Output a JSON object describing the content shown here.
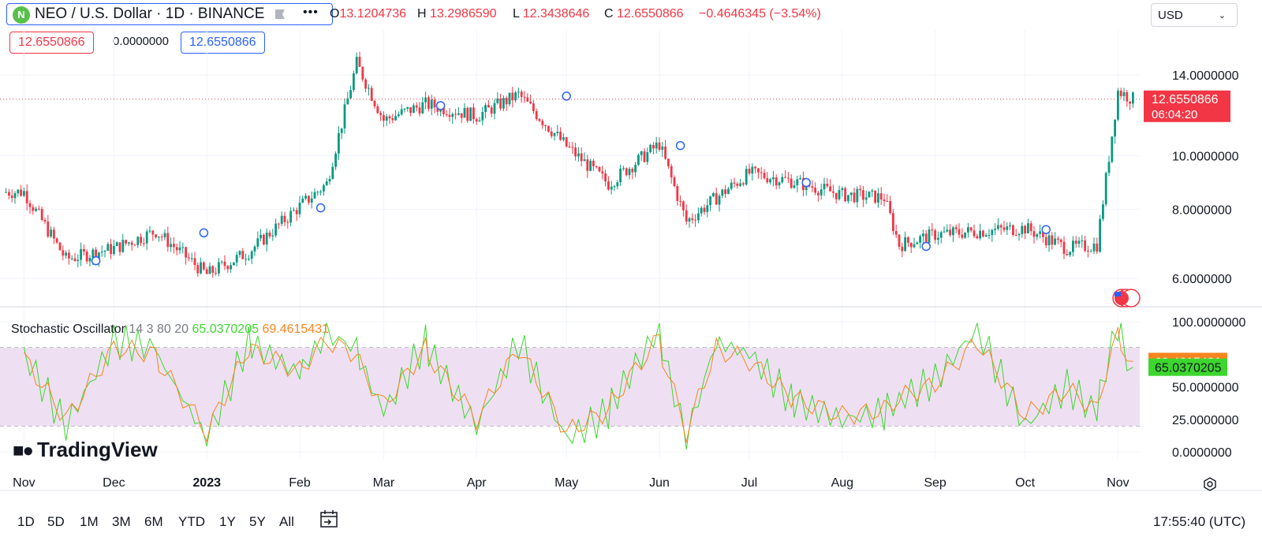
{
  "header": {
    "symbol_title": "NEO / U.S. Dollar · 1D · BINANCE",
    "logo_glyph": "N",
    "ohlc": {
      "o_label": "O",
      "o_value": "13.1204736",
      "h_label": "H",
      "h_value": "13.2986590",
      "l_label": "L",
      "l_value": "12.3438646",
      "c_label": "C",
      "c_value": "12.6550866",
      "change": "−0.4646345 (−3.54%)"
    },
    "currency": "USD",
    "pills": {
      "last": "12.6550866",
      "zero": "0.0000000",
      "bid": "12.6550866"
    }
  },
  "price_axis": {
    "ticks": [
      "14.0000000",
      "10.0000000",
      "8.0000000",
      "6.0000000"
    ],
    "current_price": "12.6550866",
    "countdown": "06:04:20"
  },
  "oscillator": {
    "name": "Stochastic Oscillator",
    "params": "14 3 80 20",
    "k_value": "65.0370205",
    "d_value": "69.4615431",
    "ticks": [
      "100.0000000",
      "50.0000000",
      "25.0000000",
      "0.0000000"
    ]
  },
  "time_axis": [
    "Nov",
    "Dec",
    "2023",
    "Feb",
    "Mar",
    "Apr",
    "May",
    "Jun",
    "Jul",
    "Aug",
    "Sep",
    "Oct",
    "Nov"
  ],
  "branding": "TradingView",
  "timeframes": [
    "1D",
    "5D",
    "1M",
    "3M",
    "6M",
    "YTD",
    "1Y",
    "5Y",
    "All"
  ],
  "clock": "17:55:40 (UTC)",
  "colors": {
    "up": "#089981",
    "down": "#f23645",
    "k_line": "#3dd62f",
    "d_line": "#f7851e",
    "band": "#eee0f2",
    "accent": "#2962ff"
  },
  "chart_data": [
    {
      "type": "candlestick",
      "title": "NEO / U.S. Dollar · 1D · BINANCE",
      "y_scale": "log",
      "ylim": [
        5.2,
        16.5
      ],
      "x": [
        "2022-11",
        "2022-11-15",
        "2022-12",
        "2022-12-15",
        "2023-01",
        "2023-01-15",
        "2023-02",
        "2023-02-10",
        "2023-02-20",
        "2023-03",
        "2023-03-15",
        "2023-04",
        "2023-04-15",
        "2023-05",
        "2023-05-15",
        "2023-06",
        "2023-06-10",
        "2023-06-20",
        "2023-07",
        "2023-07-15",
        "2023-08",
        "2023-08-15",
        "2023-08-20",
        "2023-09",
        "2023-09-15",
        "2023-10",
        "2023-10-15",
        "2023-10-25",
        "2023-11",
        "2023-11-06"
      ],
      "close": [
        8.6,
        6.5,
        6.8,
        7.3,
        6.1,
        6.7,
        8.1,
        8.9,
        14.7,
        11.6,
        12.4,
        11.8,
        12.9,
        10.4,
        8.9,
        10.5,
        7.6,
        8.4,
        9.3,
        9.0,
        8.5,
        8.4,
        6.9,
        7.2,
        7.3,
        7.4,
        6.8,
        6.9,
        13.1,
        12.6550866
      ],
      "markers": [
        "2022-11-25",
        "2022-12-31",
        "2023-02-08",
        "2023-03-20",
        "2023-05-01",
        "2023-06-08",
        "2023-07-20",
        "2023-08-29",
        "2023-10-08"
      ],
      "current_price": 12.6550866
    },
    {
      "type": "line",
      "title": "Stochastic Oscillator",
      "ylim": [
        0,
        100
      ],
      "bands": [
        20,
        80
      ],
      "series": [
        {
          "name": "%K",
          "values": [
            75,
            20,
            85,
            80,
            10,
            85,
            60,
            90,
            80,
            30,
            85,
            20,
            85,
            10,
            30,
            95,
            10,
            85,
            75,
            40,
            25,
            30,
            40,
            55,
            95,
            20,
            50,
            30,
            98,
            65.0370205
          ]
        },
        {
          "name": "%D",
          "values": [
            72,
            25,
            80,
            75,
            15,
            80,
            62,
            85,
            75,
            35,
            80,
            25,
            80,
            15,
            32,
            88,
            15,
            80,
            70,
            42,
            28,
            32,
            42,
            52,
            85,
            28,
            48,
            32,
            90,
            69.4615431
          ]
        }
      ]
    }
  ]
}
